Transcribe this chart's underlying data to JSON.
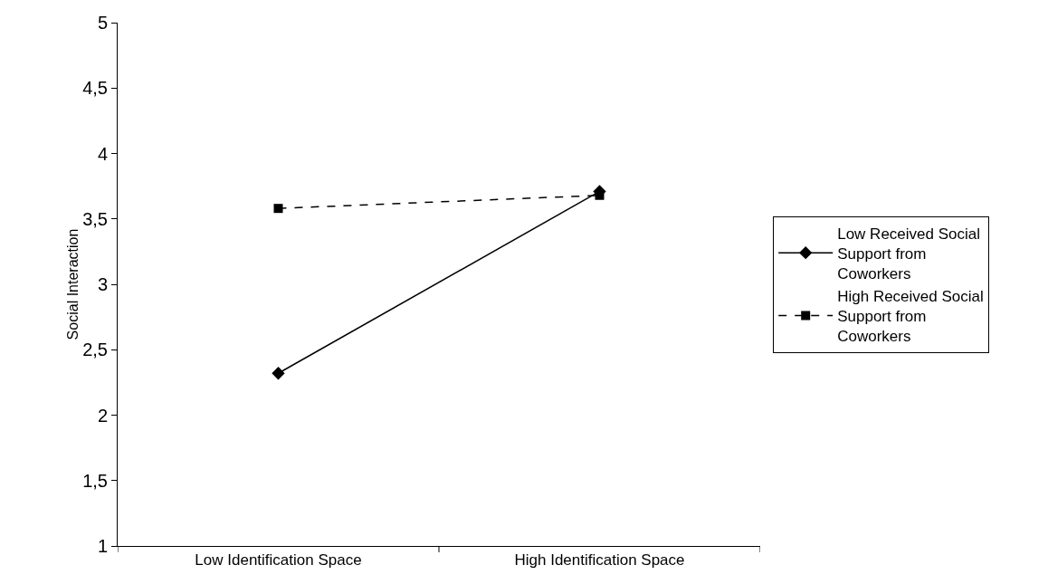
{
  "chart_data": {
    "type": "line",
    "ylabel": "Social Interaction",
    "categories": [
      "Low Identification Space",
      "High Identification Space"
    ],
    "series": [
      {
        "name": "Low Received Social Support from Coworkers",
        "color": "#000000",
        "values": [
          2.32,
          3.71
        ],
        "marker": "diamond",
        "line_style": "solid"
      },
      {
        "name": "High Received Social Support from Coworkers",
        "color": "#000000",
        "values": [
          3.58,
          3.68
        ],
        "marker": "square",
        "line_style": "dashed"
      }
    ],
    "ylim": [
      1,
      5
    ],
    "yticks": [
      1,
      {
        "value": 1.5,
        "label": "1,5"
      },
      2,
      {
        "value": 2.5,
        "label": "2,5"
      },
      3,
      {
        "value": 3.5,
        "label": "3,5"
      },
      4,
      {
        "value": 4.5,
        "label": "4,5"
      },
      5
    ],
    "grid": false,
    "legend": "right"
  }
}
